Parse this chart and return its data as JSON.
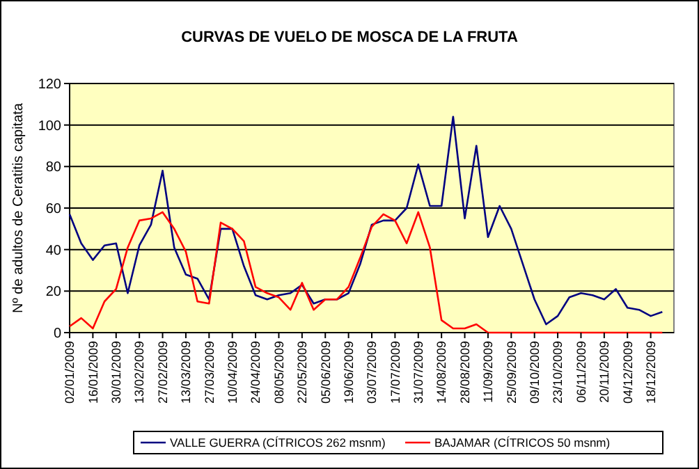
{
  "chart_data": {
    "type": "line",
    "title": "CURVAS DE VUELO DE MOSCA DE LA FRUTA",
    "ylabel": "Nº de adultos de Ceratitis capitata",
    "categories": [
      "02/01/2009",
      null,
      "16/01/2009",
      null,
      "30/01/2009",
      null,
      "13/02/2009",
      null,
      "27/02/2009",
      null,
      "13/03/2009",
      null,
      "27/03/2009",
      null,
      "10/04/2009",
      null,
      "24/04/2009",
      null,
      "08/05/2009",
      null,
      "22/05/2009",
      null,
      "05/06/2009",
      null,
      "19/06/2009",
      null,
      "03/07/2009",
      null,
      "17/07/2009",
      null,
      "31/07/2009",
      null,
      "14/08/2009",
      null,
      "28/08/2009",
      null,
      "11/09/2009",
      null,
      "25/09/2009",
      null,
      "09/10/2009",
      null,
      "23/10/2009",
      null,
      "06/11/2009",
      null,
      "20/11/2009",
      null,
      "04/12/2009",
      null,
      "18/12/2009",
      null
    ],
    "series": [
      {
        "name": "VALLE GUERRA (CÍTRICOS 262 msnm)",
        "color": "#000080",
        "values": [
          57,
          43,
          35,
          42,
          43,
          19,
          42,
          52,
          78,
          41,
          28,
          26,
          16,
          50,
          50,
          32,
          18,
          16,
          18,
          19,
          23,
          14,
          16,
          16,
          19,
          33,
          52,
          54,
          54,
          60,
          81,
          61,
          61,
          104,
          55,
          90,
          46,
          61,
          50,
          33,
          16,
          4,
          8,
          17,
          19,
          18,
          16,
          21,
          12,
          11,
          8,
          10
        ]
      },
      {
        "name": "BAJAMAR (CÍTRICOS 50 msnm)",
        "color": "#ff0000",
        "values": [
          3,
          7,
          2,
          15,
          21,
          41,
          54,
          55,
          58,
          50,
          39,
          15,
          14,
          53,
          50,
          44,
          22,
          19,
          17,
          11,
          24,
          11,
          16,
          16,
          22,
          36,
          51,
          57,
          54,
          43,
          58,
          41,
          6,
          2,
          2,
          4,
          0,
          0,
          0,
          0,
          0,
          0,
          0,
          0,
          0,
          0,
          0,
          0,
          0,
          0,
          0,
          0
        ]
      }
    ],
    "ylim": [
      0,
      120
    ],
    "yticks": [
      0,
      20,
      40,
      60,
      80,
      100,
      120
    ],
    "grid": "y",
    "legend": "bottom",
    "marker": "none",
    "line_style": "solid"
  }
}
